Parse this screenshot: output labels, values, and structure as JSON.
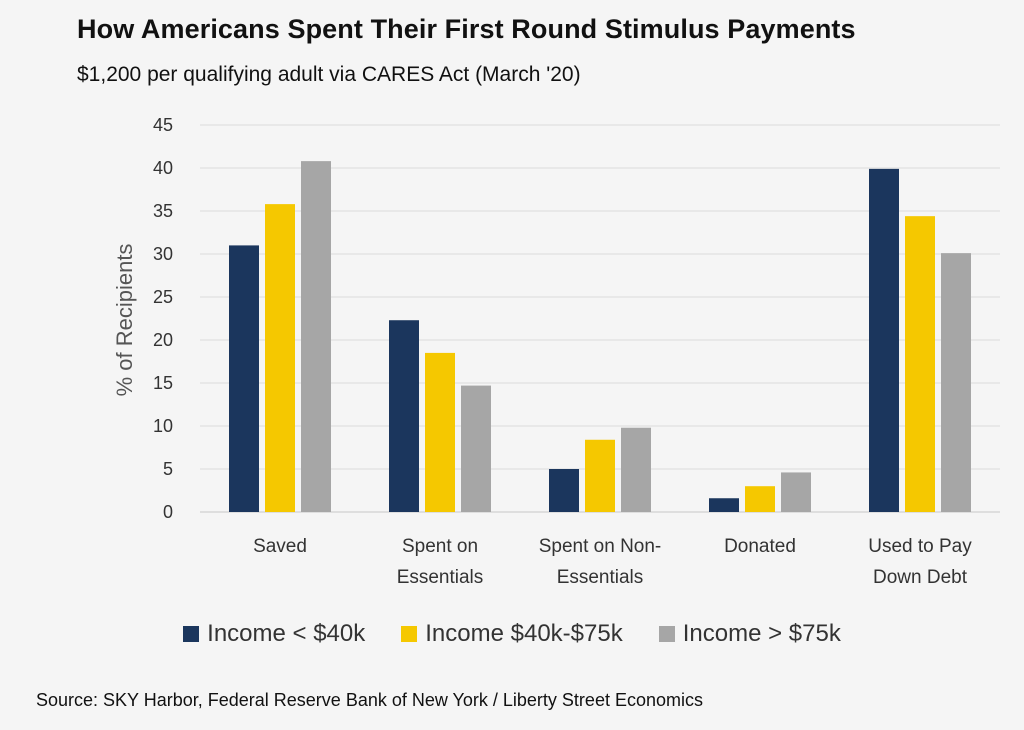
{
  "chart_data": {
    "type": "bar",
    "title": "How Americans Spent Their First Round Stimulus Payments",
    "subtitle": "$1,200 per qualifying adult via CARES Act (March '20)",
    "ylabel": "% of Recipients",
    "ylim": [
      0,
      45
    ],
    "yticks": [
      0,
      5,
      10,
      15,
      20,
      25,
      30,
      35,
      40,
      45
    ],
    "grid": true,
    "legend_position": "bottom",
    "categories": [
      [
        "Saved"
      ],
      [
        "Spent on",
        "Essentials"
      ],
      [
        "Spent on Non-",
        "Essentials"
      ],
      [
        "Donated"
      ],
      [
        "Used to Pay",
        "Down Debt"
      ]
    ],
    "series": [
      {
        "name": "Income < $40k",
        "color": "#1b365d",
        "values": [
          31,
          22.3,
          5,
          1.6,
          39.9
        ]
      },
      {
        "name": "Income $40k-$75k",
        "color": "#f5c800",
        "values": [
          35.8,
          18.5,
          8.4,
          3,
          34.4
        ]
      },
      {
        "name": "Income > $75k",
        "color": "#a6a6a6",
        "values": [
          40.8,
          14.7,
          9.8,
          4.6,
          30.1
        ]
      }
    ],
    "source": "Source: SKY Harbor, Federal Reserve Bank of New York / Liberty Street Economics"
  }
}
